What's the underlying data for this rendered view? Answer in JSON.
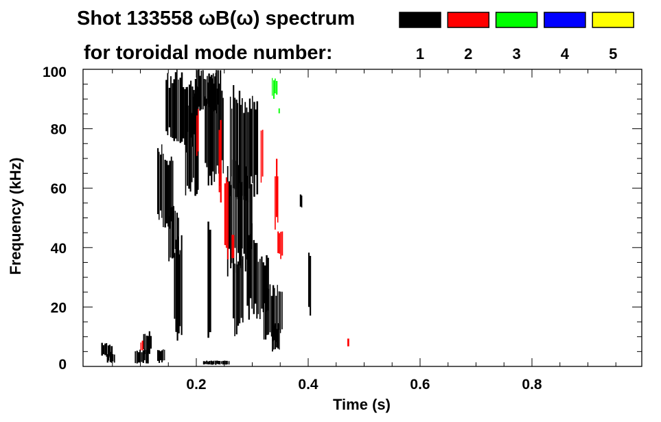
{
  "chart_data": {
    "type": "heatmap",
    "title_line1": "Shot 133558 ωB(ω) spectrum",
    "title_line2": "for toroidal mode number:",
    "xlabel": "Time (s)",
    "ylabel": "Frequency (kHz)",
    "xlim": [
      0,
      1.0
    ],
    "ylim": [
      0,
      100
    ],
    "xticks": [
      0.2,
      0.4,
      0.6,
      0.8
    ],
    "xtick_labels": [
      "0.2",
      "0.4",
      "0.6",
      "0.8"
    ],
    "yticks": [
      0,
      20,
      40,
      60,
      80,
      100
    ],
    "ytick_labels": [
      "0",
      "20",
      "40",
      "60",
      "80",
      "100"
    ],
    "x_minor_step": 0.05,
    "y_minor_step": 5,
    "grid": false,
    "legend": {
      "placement": "top-right",
      "entries": [
        {
          "mode": "1",
          "color": "#000000"
        },
        {
          "mode": "2",
          "color": "#ff0000"
        },
        {
          "mode": "3",
          "color": "#00ff00"
        },
        {
          "mode": "4",
          "color": "#0000ff"
        },
        {
          "mode": "5",
          "color": "#ffff00"
        }
      ]
    },
    "patches": [
      {
        "mode": 1,
        "t": [
          0.03,
          0.05
        ],
        "f": [
          3,
          8
        ]
      },
      {
        "mode": 1,
        "t": [
          0.04,
          0.055
        ],
        "f": [
          1,
          5
        ]
      },
      {
        "mode": 1,
        "t": [
          0.09,
          0.115
        ],
        "f": [
          1,
          6
        ]
      },
      {
        "mode": 1,
        "t": [
          0.105,
          0.12
        ],
        "f": [
          4,
          12
        ]
      },
      {
        "mode": 1,
        "t": [
          0.13,
          0.145
        ],
        "f": [
          1,
          6
        ]
      },
      {
        "mode": 1,
        "t": [
          0.13,
          0.14
        ],
        "f": [
          48,
          75
        ]
      },
      {
        "mode": 1,
        "t": [
          0.14,
          0.16
        ],
        "f": [
          45,
          72
        ]
      },
      {
        "mode": 1,
        "t": [
          0.15,
          0.17
        ],
        "f": [
          35,
          55
        ]
      },
      {
        "mode": 1,
        "t": [
          0.16,
          0.175
        ],
        "f": [
          8,
          45
        ]
      },
      {
        "mode": 1,
        "t": [
          0.145,
          0.17
        ],
        "f": [
          75,
          100
        ]
      },
      {
        "mode": 1,
        "t": [
          0.17,
          0.2
        ],
        "f": [
          72,
          100
        ]
      },
      {
        "mode": 1,
        "t": [
          0.18,
          0.205
        ],
        "f": [
          55,
          95
        ]
      },
      {
        "mode": 1,
        "t": [
          0.2,
          0.24
        ],
        "f": [
          85,
          100
        ]
      },
      {
        "mode": 1,
        "t": [
          0.215,
          0.25
        ],
        "f": [
          60,
          100
        ]
      },
      {
        "mode": 1,
        "t": [
          0.22,
          0.226
        ],
        "f": [
          0,
          60
        ]
      },
      {
        "mode": 1,
        "t": [
          0.212,
          0.26
        ],
        "f": [
          0.5,
          2
        ]
      },
      {
        "mode": 1,
        "t": [
          0.26,
          0.31
        ],
        "f": [
          55,
          95
        ]
      },
      {
        "mode": 1,
        "t": [
          0.255,
          0.3
        ],
        "f": [
          30,
          70
        ]
      },
      {
        "mode": 1,
        "t": [
          0.265,
          0.285
        ],
        "f": [
          10,
          40
        ]
      },
      {
        "mode": 1,
        "t": [
          0.29,
          0.31
        ],
        "f": [
          15,
          50
        ]
      },
      {
        "mode": 1,
        "t": [
          0.31,
          0.33
        ],
        "f": [
          15,
          40
        ]
      },
      {
        "mode": 1,
        "t": [
          0.32,
          0.355
        ],
        "f": [
          8,
          28
        ]
      },
      {
        "mode": 1,
        "t": [
          0.335,
          0.35
        ],
        "f": [
          5,
          15
        ]
      },
      {
        "mode": 1,
        "t": [
          0.4,
          0.405
        ],
        "f": [
          15,
          40
        ]
      },
      {
        "mode": 1,
        "t": [
          0.385,
          0.39
        ],
        "f": [
          53,
          58
        ]
      },
      {
        "mode": 2,
        "t": [
          0.1,
          0.105
        ],
        "f": [
          5,
          9
        ]
      },
      {
        "mode": 2,
        "t": [
          0.2,
          0.205
        ],
        "f": [
          70,
          88
        ]
      },
      {
        "mode": 2,
        "t": [
          0.24,
          0.245
        ],
        "f": [
          50,
          85
        ]
      },
      {
        "mode": 2,
        "t": [
          0.25,
          0.258
        ],
        "f": [
          35,
          65
        ]
      },
      {
        "mode": 2,
        "t": [
          0.263,
          0.267
        ],
        "f": [
          35,
          45
        ]
      },
      {
        "mode": 2,
        "t": [
          0.315,
          0.32
        ],
        "f": [
          60,
          80
        ]
      },
      {
        "mode": 2,
        "t": [
          0.34,
          0.347
        ],
        "f": [
          45,
          70
        ]
      },
      {
        "mode": 2,
        "t": [
          0.345,
          0.355
        ],
        "f": [
          35,
          48
        ]
      },
      {
        "mode": 2,
        "t": [
          0.47,
          0.473
        ],
        "f": [
          6,
          10
        ]
      },
      {
        "mode": 3,
        "t": [
          0.335,
          0.345
        ],
        "f": [
          90,
          98
        ]
      },
      {
        "mode": 3,
        "t": [
          0.347,
          0.35
        ],
        "f": [
          85,
          87
        ]
      }
    ]
  }
}
